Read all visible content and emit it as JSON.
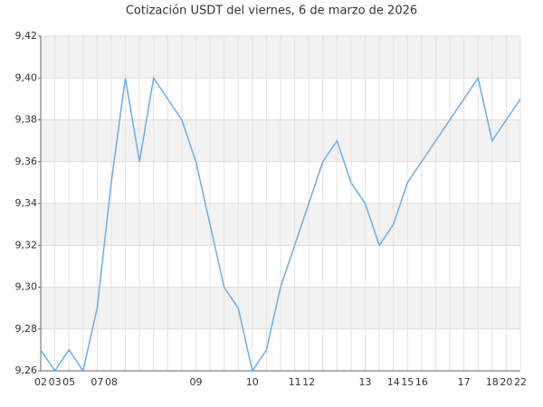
{
  "chart_data": {
    "type": "line",
    "title": "Cotización USDT del viernes, 6 de marzo de 2026",
    "categories": [
      "02",
      "03",
      "05",
      null,
      "07",
      "08",
      null,
      null,
      null,
      null,
      null,
      "09",
      null,
      null,
      null,
      "10",
      null,
      null,
      "11",
      "12",
      null,
      null,
      null,
      "13",
      null,
      "14",
      "15",
      "16",
      null,
      null,
      "17",
      null,
      "18",
      "20",
      "22"
    ],
    "values": [
      9.27,
      9.26,
      9.27,
      9.26,
      9.29,
      9.35,
      9.4,
      9.36,
      9.4,
      9.39,
      9.38,
      9.36,
      9.33,
      9.3,
      9.29,
      9.26,
      9.27,
      9.3,
      9.32,
      9.34,
      9.36,
      9.37,
      9.35,
      9.34,
      9.32,
      9.33,
      9.35,
      9.36,
      9.37,
      9.38,
      9.39,
      9.4,
      9.37,
      9.38,
      9.39
    ],
    "color": "#6aaee8",
    "ylim": [
      9.26,
      9.42
    ],
    "yticks": [
      {
        "value": 9.26,
        "label": "9,26"
      },
      {
        "value": 9.28,
        "label": "9,28"
      },
      {
        "value": 9.3,
        "label": "9,30"
      },
      {
        "value": 9.32,
        "label": "9,32"
      },
      {
        "value": 9.34,
        "label": "9,34"
      },
      {
        "value": 9.36,
        "label": "9,36"
      },
      {
        "value": 9.38,
        "label": "9,38"
      },
      {
        "value": 9.4,
        "label": "9,40"
      },
      {
        "value": 9.42,
        "label": "9,42"
      }
    ],
    "grid": true
  }
}
